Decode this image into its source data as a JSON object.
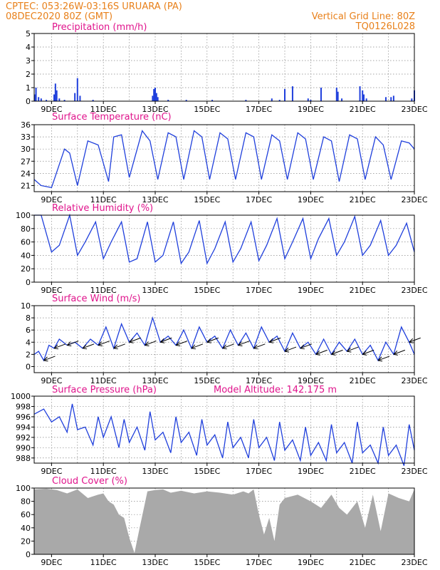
{
  "header": {
    "line1": "CPTEC:   053:26W-03:16S   URUARA (PA)",
    "line2": "08DEC2020 80Z (GMT)",
    "grid_note": "Vertical Grid Line: 80Z",
    "code": "TQ0126L028"
  },
  "x_axis": {
    "labels": [
      "9DEC",
      "11DEC",
      "13DEC",
      "15DEC",
      "17DEC",
      "19DEC",
      "21DEC",
      "23DEC"
    ],
    "start_day": 8.33,
    "end_day": 23.0
  },
  "colors": {
    "line": "#1f3fdc",
    "title": "#e0148c",
    "header": "#e8801a",
    "cloud": "#a9a9a9"
  },
  "chart_data": [
    {
      "type": "bar",
      "title": "Precipitation (mm/h)",
      "ylim": [
        0,
        5
      ],
      "yticks": [
        0,
        1,
        2,
        3,
        4,
        5
      ],
      "series": [
        {
          "x": [
            8.35,
            8.4,
            8.5,
            8.6,
            8.8,
            9.1,
            9.15,
            9.2,
            9.3,
            9.5,
            9.9,
            10.0,
            10.1,
            10.6,
            12.9,
            12.95,
            13.0,
            13.05,
            13.1,
            13.5,
            14.2,
            15.2,
            16.5,
            17.5,
            17.8,
            18.0,
            18.3,
            18.9,
            19.0,
            19.4,
            20.0,
            20.05,
            20.2,
            20.9,
            21.0,
            21.05,
            21.15,
            21.9,
            22.1,
            22.2,
            22.9,
            23.0
          ],
          "values": [
            0.5,
            1.0,
            0.3,
            0.2,
            0.1,
            0.5,
            1.3,
            0.8,
            0.2,
            0.1,
            0.6,
            1.7,
            0.4,
            0.1,
            0.4,
            0.9,
            1.0,
            0.6,
            0.3,
            0.1,
            0.1,
            0.1,
            0.1,
            0.2,
            0.1,
            0.9,
            1.1,
            0.2,
            0.1,
            1.0,
            1.0,
            0.7,
            0.2,
            1.1,
            0.8,
            0.5,
            0.2,
            0.3,
            0.3,
            0.4,
            0.2,
            0.8
          ]
        }
      ]
    },
    {
      "type": "line",
      "title": "Surface Temperature (nC)",
      "ylim": [
        19.5,
        36
      ],
      "yticks": [
        21,
        24,
        27,
        30,
        33,
        36
      ],
      "series": [
        {
          "x": [
            8.33,
            8.6,
            9.0,
            9.5,
            9.7,
            10.0,
            10.4,
            10.8,
            11.2,
            11.4,
            11.7,
            12.0,
            12.5,
            12.8,
            13.1,
            13.5,
            13.8,
            14.1,
            14.5,
            14.8,
            15.1,
            15.5,
            15.8,
            16.1,
            16.5,
            16.8,
            17.1,
            17.5,
            17.8,
            18.1,
            18.5,
            18.8,
            19.1,
            19.5,
            19.8,
            20.1,
            20.5,
            20.8,
            21.1,
            21.5,
            21.8,
            22.1,
            22.5,
            22.8,
            23.0
          ],
          "values": [
            22.5,
            21.0,
            20.5,
            30.0,
            29.0,
            21.0,
            32.0,
            31.0,
            22.0,
            33.0,
            33.5,
            23.0,
            34.5,
            32.0,
            22.5,
            34.0,
            33.0,
            22.5,
            34.5,
            33.0,
            22.5,
            34.0,
            32.5,
            22.5,
            34.0,
            33.0,
            22.5,
            33.5,
            32.0,
            22.5,
            34.0,
            32.5,
            22.5,
            33.0,
            32.0,
            22.0,
            33.5,
            32.5,
            22.5,
            33.0,
            31.0,
            22.5,
            32.0,
            31.5,
            30.0
          ]
        }
      ]
    },
    {
      "type": "line",
      "title": "Relative Humidity (%)",
      "ylim": [
        0,
        100
      ],
      "yticks": [
        0,
        20,
        40,
        60,
        80,
        100
      ],
      "series": [
        {
          "x": [
            8.33,
            8.6,
            9.0,
            9.3,
            9.7,
            10.0,
            10.3,
            10.7,
            11.0,
            11.3,
            11.7,
            12.0,
            12.3,
            12.7,
            13.0,
            13.3,
            13.7,
            14.0,
            14.3,
            14.7,
            15.0,
            15.3,
            15.7,
            16.0,
            16.3,
            16.7,
            17.0,
            17.3,
            17.7,
            18.0,
            18.3,
            18.7,
            19.0,
            19.3,
            19.7,
            20.0,
            20.3,
            20.7,
            21.0,
            21.3,
            21.7,
            22.0,
            22.3,
            22.7,
            23.0
          ],
          "values": [
            100,
            100,
            45,
            55,
            100,
            40,
            60,
            90,
            35,
            60,
            90,
            30,
            35,
            90,
            30,
            40,
            90,
            28,
            45,
            92,
            28,
            50,
            90,
            30,
            50,
            90,
            32,
            55,
            95,
            35,
            60,
            95,
            35,
            65,
            95,
            40,
            60,
            98,
            40,
            55,
            92,
            40,
            55,
            88,
            45
          ]
        }
      ]
    },
    {
      "type": "line",
      "title": "Surface Wind (m/s)",
      "ylim": [
        -1,
        10
      ],
      "yticks": [
        0,
        2,
        4,
        6,
        8,
        10
      ],
      "series": [
        {
          "x": [
            8.33,
            8.5,
            8.7,
            8.9,
            9.1,
            9.3,
            9.6,
            9.9,
            10.2,
            10.5,
            10.8,
            11.1,
            11.4,
            11.7,
            12.0,
            12.3,
            12.6,
            12.9,
            13.2,
            13.5,
            13.8,
            14.1,
            14.4,
            14.7,
            15.0,
            15.3,
            15.6,
            15.9,
            16.2,
            16.5,
            16.8,
            17.1,
            17.4,
            17.7,
            18.0,
            18.3,
            18.6,
            18.9,
            19.2,
            19.5,
            19.8,
            20.1,
            20.4,
            20.7,
            21.0,
            21.3,
            21.6,
            21.9,
            22.2,
            22.5,
            22.8,
            23.0
          ],
          "values": [
            2.0,
            2.5,
            1.0,
            3.5,
            3.0,
            4.5,
            3.5,
            4.0,
            3.0,
            4.5,
            3.5,
            6.5,
            3.0,
            7.0,
            4.0,
            5.5,
            3.5,
            8.0,
            4.0,
            5.0,
            3.5,
            6.0,
            3.0,
            6.5,
            4.0,
            5.0,
            3.0,
            6.0,
            3.5,
            5.5,
            3.0,
            6.5,
            4.0,
            5.0,
            2.5,
            5.5,
            3.0,
            4.0,
            2.0,
            4.5,
            2.0,
            4.0,
            2.5,
            4.5,
            2.0,
            3.5,
            1.0,
            4.0,
            2.0,
            6.5,
            4.0,
            2.0
          ]
        }
      ]
    },
    {
      "type": "line",
      "title": "Surface Pressure (hPa)",
      "annotation": "Model Altitude: 142.175 m",
      "ylim": [
        987,
        1000
      ],
      "yticks": [
        988,
        990,
        992,
        994,
        996,
        998,
        1000
      ],
      "series": [
        {
          "x": [
            8.33,
            8.7,
            9.0,
            9.3,
            9.6,
            9.8,
            10.0,
            10.3,
            10.6,
            10.8,
            11.0,
            11.3,
            11.6,
            11.8,
            12.0,
            12.3,
            12.6,
            12.8,
            13.0,
            13.3,
            13.6,
            13.8,
            14.0,
            14.3,
            14.6,
            14.8,
            15.0,
            15.3,
            15.6,
            15.8,
            16.0,
            16.3,
            16.6,
            16.8,
            17.0,
            17.3,
            17.6,
            17.8,
            18.0,
            18.3,
            18.6,
            18.8,
            19.0,
            19.3,
            19.6,
            19.8,
            20.0,
            20.3,
            20.6,
            20.8,
            21.0,
            21.3,
            21.6,
            21.8,
            22.0,
            22.3,
            22.6,
            22.8,
            23.0
          ],
          "values": [
            996.5,
            997.5,
            995.0,
            996.0,
            993.0,
            998.5,
            993.5,
            994.0,
            990.5,
            996.0,
            992.0,
            996.0,
            990.0,
            995.5,
            991.0,
            994.0,
            989.5,
            997.0,
            991.5,
            993.0,
            989.0,
            996.0,
            991.0,
            993.0,
            988.5,
            995.5,
            990.5,
            992.5,
            988.0,
            995.0,
            990.0,
            992.0,
            988.0,
            995.5,
            990.0,
            992.0,
            987.5,
            995.0,
            989.5,
            991.5,
            987.5,
            994.0,
            988.5,
            991.0,
            987.5,
            994.5,
            989.0,
            991.0,
            987.0,
            995.0,
            989.0,
            990.5,
            987.0,
            994.0,
            988.5,
            990.5,
            986.5,
            994.5,
            989.5
          ]
        }
      ]
    },
    {
      "type": "area",
      "title": "Cloud Cover (%)",
      "ylim": [
        0,
        100
      ],
      "yticks": [
        0,
        20,
        40,
        60,
        80,
        100
      ],
      "series": [
        {
          "x": [
            8.33,
            8.8,
            9.2,
            9.6,
            10.0,
            10.4,
            10.8,
            11.0,
            11.2,
            11.4,
            11.6,
            11.8,
            12.0,
            12.2,
            12.4,
            12.7,
            13.0,
            13.3,
            13.6,
            14.0,
            14.5,
            15.0,
            15.5,
            16.0,
            16.4,
            16.6,
            16.8,
            17.0,
            17.2,
            17.4,
            17.6,
            17.8,
            18.0,
            18.5,
            19.0,
            19.4,
            19.8,
            20.1,
            20.4,
            20.8,
            21.1,
            21.4,
            21.7,
            22.0,
            22.4,
            22.8,
            23.0
          ],
          "values": [
            98,
            99,
            97,
            92,
            98,
            85,
            90,
            92,
            80,
            75,
            60,
            55,
            25,
            2,
            40,
            95,
            97,
            98,
            93,
            96,
            92,
            95,
            93,
            90,
            95,
            92,
            98,
            60,
            30,
            55,
            20,
            75,
            85,
            90,
            80,
            70,
            90,
            70,
            60,
            80,
            40,
            90,
            35,
            92,
            85,
            80,
            98
          ]
        }
      ]
    }
  ]
}
